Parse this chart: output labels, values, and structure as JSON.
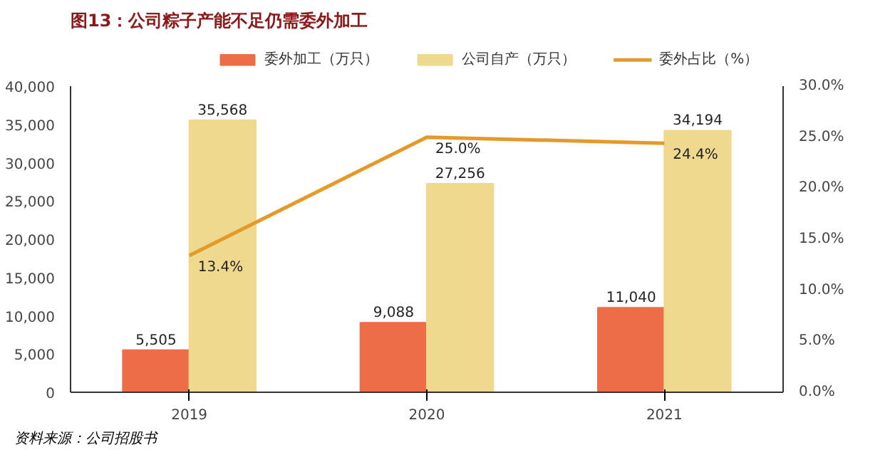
{
  "chart_data": {
    "type": "bar",
    "title": "图13：公司粽子产能不足仍需委外加工",
    "categories": [
      "2019",
      "2020",
      "2021"
    ],
    "series": [
      {
        "name": "委外加工（万只）",
        "color": "#ec6d48",
        "values": [
          5505,
          9088,
          11040
        ],
        "value_labels": [
          "5,505",
          "9,088",
          "11,040"
        ]
      },
      {
        "name": "公司自产（万只）",
        "color": "#efd98e",
        "values": [
          35568,
          27256,
          34194
        ],
        "value_labels": [
          "35,568",
          "27,256",
          "34,194"
        ]
      },
      {
        "name": "委外占比（%）",
        "type": "line",
        "axis": "y2",
        "color": "#e49a28",
        "values": [
          13.4,
          25.0,
          24.4
        ],
        "value_labels": [
          "13.4%",
          "25.0%",
          "24.4%"
        ]
      }
    ],
    "ylim": [
      0,
      40000
    ],
    "yticks": [
      0,
      {
        "value": 5000,
        "label": "5,000"
      },
      {
        "value": 10000,
        "label": "10,000"
      },
      {
        "value": 15000,
        "label": "15,000"
      },
      {
        "value": 20000,
        "label": "20,000"
      },
      {
        "value": 25000,
        "label": "25,000"
      },
      {
        "value": 30000,
        "label": "30,000"
      },
      {
        "value": 35000,
        "label": "35,000"
      },
      {
        "value": 40000,
        "label": "40,000"
      }
    ],
    "y2lim": [
      0,
      30
    ],
    "y2ticks": [
      {
        "value": 0,
        "label": "0.0%"
      },
      {
        "value": 5,
        "label": "5.0%"
      },
      {
        "value": 10,
        "label": "10.0%"
      },
      {
        "value": 15,
        "label": "15.0%"
      },
      {
        "value": 20,
        "label": "20.0%"
      },
      {
        "value": 25,
        "label": "25.0%"
      },
      {
        "value": 30,
        "label": "30.0%"
      }
    ],
    "grid": false,
    "legend": "top",
    "marker": "none",
    "line_style": "solid",
    "annotations": [
      "资料来源：公司招股书"
    ]
  }
}
